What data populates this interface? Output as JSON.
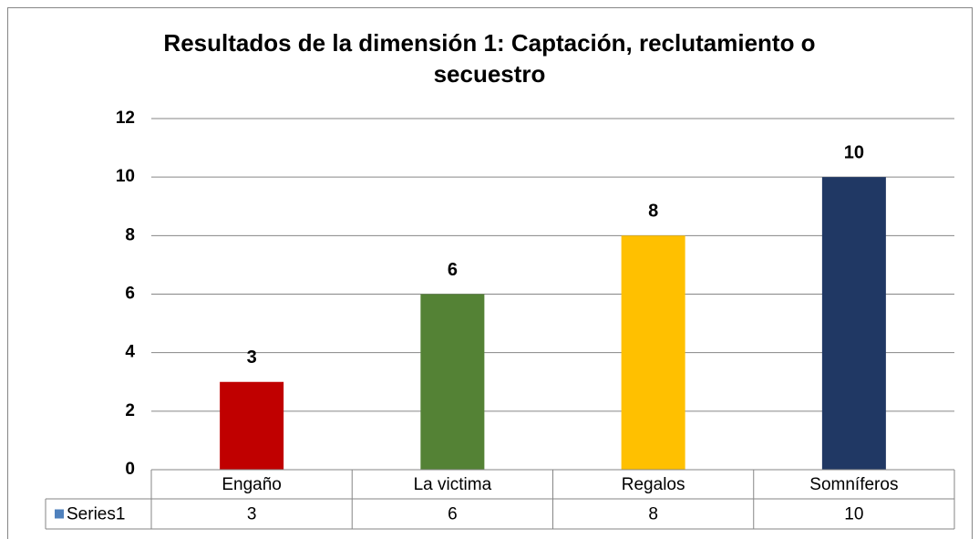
{
  "chart_data": {
    "type": "bar",
    "title": "Resultados de la dimensión 1: Captación, reclutamiento o secuestro",
    "categories": [
      "Engaño",
      "La victima",
      "Regalos",
      "Somníferos"
    ],
    "series": [
      {
        "name": "Series1",
        "color": "#4f81bd",
        "colors": [
          "#c00000",
          "#548235",
          "#ffc000",
          "#203864"
        ],
        "values": [
          3,
          6,
          8,
          10
        ]
      }
    ],
    "ylim": [
      0,
      12
    ],
    "yticks": [
      0,
      2,
      4,
      6,
      8,
      10,
      12
    ],
    "grid": true,
    "data_table": true
  }
}
